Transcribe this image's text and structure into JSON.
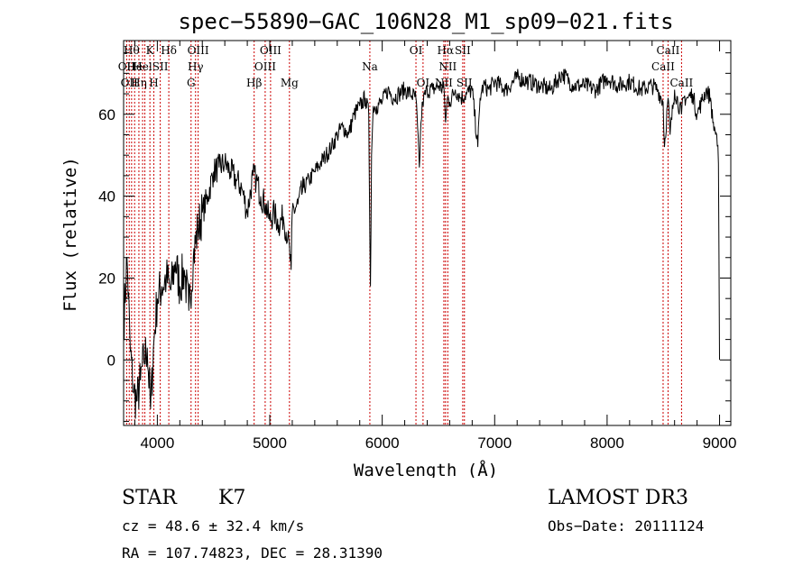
{
  "chart_data": {
    "type": "line",
    "title": "spec−55890−GAC_106N28_M1_sp09−021.fits",
    "xlabel": "Wavelength (Å)",
    "ylabel": "Flux (relative)",
    "xlim": [
      3700,
      9100
    ],
    "ylim": [
      -16,
      78
    ],
    "xticks": [
      4000,
      5000,
      6000,
      7000,
      8000,
      9000
    ],
    "yticks": [
      0,
      20,
      40,
      60
    ],
    "series": [
      {
        "name": "flux",
        "x": [
          3700,
          3730,
          3760,
          3790,
          3820,
          3850,
          3880,
          3910,
          3940,
          3970,
          4000,
          4040,
          4080,
          4120,
          4160,
          4200,
          4240,
          4280,
          4320,
          4360,
          4400,
          4450,
          4500,
          4550,
          4600,
          4650,
          4700,
          4750,
          4800,
          4850,
          4880,
          4920,
          4960,
          5000,
          5040,
          5080,
          5120,
          5160,
          5190,
          5200,
          5250,
          5300,
          5350,
          5400,
          5450,
          5500,
          5550,
          5600,
          5650,
          5700,
          5750,
          5800,
          5850,
          5880,
          5895,
          5905,
          5920,
          5950,
          6000,
          6050,
          6100,
          6150,
          6200,
          6250,
          6300,
          6330,
          6345,
          6360,
          6400,
          6450,
          6500,
          6550,
          6564,
          6580,
          6600,
          6650,
          6700,
          6750,
          6800,
          6850,
          6870,
          6880,
          6900,
          6950,
          7000,
          7100,
          7200,
          7300,
          7400,
          7500,
          7600,
          7700,
          7800,
          7900,
          8000,
          8100,
          8200,
          8300,
          8400,
          8450,
          8498,
          8510,
          8542,
          8560,
          8600,
          8662,
          8680,
          8720,
          8760,
          8800,
          8840,
          8880,
          8920,
          8940,
          8960,
          8975,
          8990,
          9000
        ],
        "values": [
          8,
          25,
          2,
          -8,
          -10,
          -5,
          0,
          3,
          -12,
          5,
          15,
          18,
          20,
          17,
          24,
          18,
          22,
          12,
          25,
          32,
          36,
          40,
          46,
          47,
          48,
          46,
          44,
          42,
          36,
          45,
          44,
          40,
          38,
          34,
          36,
          33,
          35,
          30,
          22,
          36,
          38,
          42,
          44,
          46,
          48,
          50,
          52,
          55,
          57,
          55,
          60,
          62,
          64,
          60,
          18,
          50,
          62,
          62,
          63,
          66,
          64,
          65,
          66,
          65,
          64,
          47,
          58,
          63,
          66,
          66,
          67,
          66,
          58,
          64,
          63,
          66,
          64,
          65,
          66,
          52,
          64,
          65,
          67,
          66,
          68,
          66,
          69,
          68,
          67,
          66,
          70,
          67,
          67,
          66,
          69,
          67,
          68,
          66,
          67,
          66,
          63,
          52,
          64,
          55,
          66,
          60,
          64,
          64,
          65,
          60,
          63,
          66,
          64,
          58,
          56,
          55,
          48,
          0
        ]
      }
    ],
    "lines": [
      {
        "wl": 3727,
        "label": "OII",
        "row": 1
      },
      {
        "wl": 3750,
        "label": "OII",
        "row": 2
      },
      {
        "wl": 3771,
        "label": "Hθ",
        "row": 0
      },
      {
        "wl": 3798,
        "label": "He",
        "row": 1
      },
      {
        "wl": 3836,
        "label": "Hη",
        "row": 2
      },
      {
        "wl": 3869,
        "label": "Hel",
        "row": 1
      },
      {
        "wl": 3889,
        "label": "",
        "row": 1
      },
      {
        "wl": 3934,
        "label": "K",
        "row": 0
      },
      {
        "wl": 3969,
        "label": "H",
        "row": 2
      },
      {
        "wl": 4026,
        "label": "SII",
        "row": 1
      },
      {
        "wl": 4102,
        "label": "Hδ",
        "row": 0
      },
      {
        "wl": 4300,
        "label": "G",
        "row": 2
      },
      {
        "wl": 4340,
        "label": "Hγ",
        "row": 1
      },
      {
        "wl": 4363,
        "label": "OIII",
        "row": 0
      },
      {
        "wl": 4861,
        "label": "Hβ",
        "row": 2
      },
      {
        "wl": 4959,
        "label": "OIII",
        "row": 1
      },
      {
        "wl": 5007,
        "label": "OIII",
        "row": 0
      },
      {
        "wl": 5175,
        "label": "Mg",
        "row": 2
      },
      {
        "wl": 5890,
        "label": "Na",
        "row": 1
      },
      {
        "wl": 6300,
        "label": "OI",
        "row": 0
      },
      {
        "wl": 6363,
        "label": "OI",
        "row": 2
      },
      {
        "wl": 6548,
        "label": "NII",
        "row": 2
      },
      {
        "wl": 6563,
        "label": "Hα",
        "row": 0
      },
      {
        "wl": 6583,
        "label": "NII",
        "row": 1
      },
      {
        "wl": 6716,
        "label": "SII",
        "row": 0
      },
      {
        "wl": 6731,
        "label": "SII",
        "row": 2
      },
      {
        "wl": 8498,
        "label": "CaII",
        "row": 1
      },
      {
        "wl": 8542,
        "label": "CaII",
        "row": 0
      },
      {
        "wl": 8662,
        "label": "CaII",
        "row": 2
      }
    ]
  },
  "info": {
    "object_class": "STAR",
    "subclass": "K7",
    "survey": "LAMOST DR3",
    "cz": "cz = 48.6 ± 32.4 km/s",
    "obs_date": "Obs−Date: 20111124",
    "coords": "RA = 107.74823, DEC =  28.31390"
  },
  "colors": {
    "line_marker": "#cc0000",
    "axis": "#000000",
    "spectrum": "#000000"
  }
}
